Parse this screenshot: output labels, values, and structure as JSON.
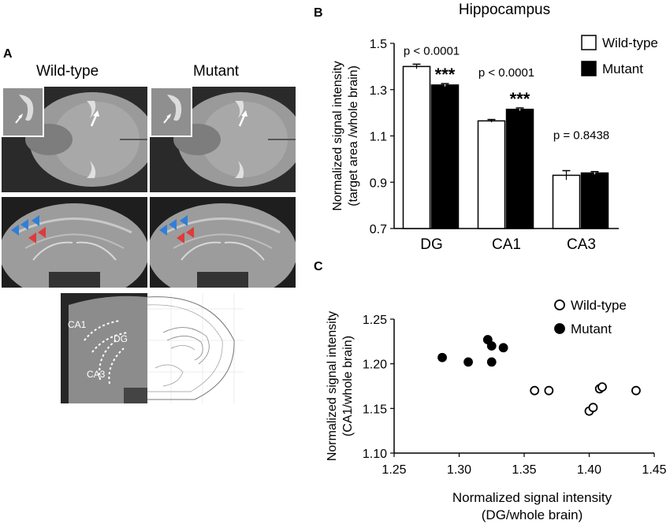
{
  "panels": {
    "A": {
      "letter": "A",
      "wildtype_label": "Wild-type",
      "mutant_label": "Mutant",
      "atlas_labels": {
        "ca1": "CA1",
        "dg": "DG",
        "ca3": "CA3"
      }
    },
    "B": {
      "letter": "B"
    },
    "C": {
      "letter": "C"
    }
  },
  "chart_data": [
    {
      "type": "bar",
      "title": "Hippocampus",
      "ylabel_line1": "Normalized signal intensity",
      "ylabel_line2": "(target area /whole brain)",
      "categories": [
        "DG",
        "CA1",
        "CA3"
      ],
      "ylim": [
        0.7,
        1.5
      ],
      "yticks": [
        "0.7",
        "0.9",
        "1.1",
        "1.3",
        "1.5"
      ],
      "series": [
        {
          "name": "Wild-type",
          "values": [
            1.4,
            1.165,
            0.93
          ],
          "errors": [
            0.01,
            0.006,
            0.02
          ],
          "fill": "#ffffff"
        },
        {
          "name": "Mutant",
          "values": [
            1.32,
            1.215,
            0.94
          ],
          "errors": [
            0.006,
            0.006,
            0.006
          ],
          "fill": "#000000"
        }
      ],
      "pvalues": [
        "p < 0.0001",
        "p < 0.0001",
        "p = 0.8438"
      ],
      "significance": [
        "***",
        "***",
        ""
      ],
      "legend": "top-right"
    },
    {
      "type": "scatter",
      "xlabel_line1": "Normalized signal intensity",
      "xlabel_line2": "(DG/whole brain)",
      "ylabel_line1": "Normalized signal intensity",
      "ylabel_line2": "(CA1/whole brain)",
      "xlim": [
        1.25,
        1.45
      ],
      "ylim": [
        1.1,
        1.25
      ],
      "xticks": [
        "1.25",
        "1.30",
        "1.35",
        "1.40",
        "1.45"
      ],
      "yticks": [
        "1.10",
        "1.15",
        "1.20",
        "1.25"
      ],
      "series": [
        {
          "name": "Wild-type",
          "marker": "open-circle",
          "points": [
            [
              1.358,
              1.17
            ],
            [
              1.369,
              1.17
            ],
            [
              1.4,
              1.147
            ],
            [
              1.403,
              1.151
            ],
            [
              1.408,
              1.172
            ],
            [
              1.41,
              1.174
            ],
            [
              1.436,
              1.17
            ]
          ]
        },
        {
          "name": "Mutant",
          "marker": "filled-circle",
          "points": [
            [
              1.287,
              1.207
            ],
            [
              1.307,
              1.202
            ],
            [
              1.322,
              1.227
            ],
            [
              1.325,
              1.22
            ],
            [
              1.325,
              1.202
            ],
            [
              1.334,
              1.218
            ]
          ]
        }
      ],
      "legend": "top-right"
    }
  ]
}
